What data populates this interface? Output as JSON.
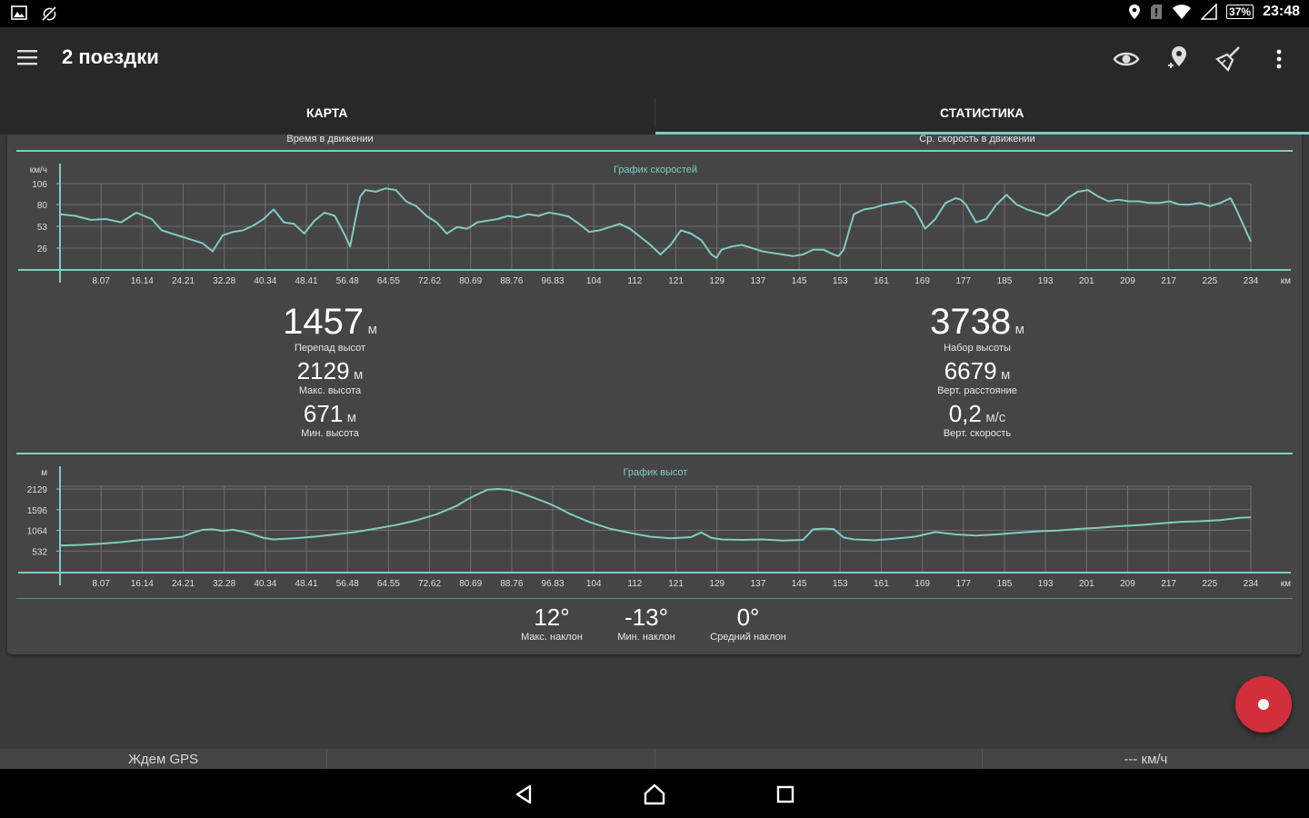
{
  "status_bar": {
    "battery": "37%",
    "time": "23:48"
  },
  "app_bar": {
    "title": "2 поездки"
  },
  "tabs": [
    {
      "label": "КАРТА",
      "active": false
    },
    {
      "label": "СТАТИСТИКА",
      "active": true
    }
  ],
  "partial_labels": {
    "left": "Время в движении",
    "right": "Ср. скорость в движении"
  },
  "stats": {
    "elevation_diff": {
      "value": "1457",
      "unit": "м",
      "label": "Перепад высот"
    },
    "max_altitude": {
      "value": "2129",
      "unit": "м",
      "label": "Макс. высота"
    },
    "min_altitude": {
      "value": "671",
      "unit": "м",
      "label": "Мин. высота"
    },
    "elevation_gain": {
      "value": "3738",
      "unit": "м",
      "label": "Набор высоты"
    },
    "vertical_distance": {
      "value": "6679",
      "unit": "м",
      "label": "Верт. расстояние"
    },
    "vertical_speed": {
      "value": "0,2",
      "unit": "м/с",
      "label": "Верт. скорость"
    }
  },
  "tilt": {
    "max": {
      "value": "12°",
      "label": "Макс. наклон"
    },
    "min": {
      "value": "-13°",
      "label": "Мин. наклон"
    },
    "avg": {
      "value": "0°",
      "label": "Средний наклон"
    }
  },
  "bottom_bar": {
    "gps": "Ждем GPS",
    "speed": "--- км/ч"
  },
  "colors": {
    "accent": "#80cbc4",
    "fab": "#d32f3b"
  },
  "chart_data": [
    {
      "type": "line",
      "title": "График скоростей",
      "ylabel": "км/ч",
      "xlabel": "км",
      "x_ticks": [
        "8.07",
        "16.14",
        "24.21",
        "32.28",
        "40.34",
        "48.41",
        "56.48",
        "64.55",
        "72.62",
        "80.69",
        "88.76",
        "96.83",
        "104",
        "112",
        "121",
        "129",
        "137",
        "145",
        "153",
        "161",
        "169",
        "177",
        "185",
        "193",
        "201",
        "209",
        "217",
        "225",
        "234"
      ],
      "y_ticks": [
        "106",
        "80",
        "53",
        "26"
      ],
      "xlim": [
        0,
        234
      ],
      "ylim": [
        0,
        106
      ],
      "series": [
        {
          "x": [
            0,
            3,
            6,
            9,
            12,
            15,
            18,
            20,
            22,
            24,
            26,
            28,
            30,
            32,
            34,
            36,
            38,
            40,
            42,
            44,
            46,
            48,
            50,
            52,
            54,
            56,
            57,
            58,
            59,
            60,
            62,
            64,
            66,
            68,
            70,
            72,
            74,
            76,
            78,
            80,
            82,
            84,
            86,
            88,
            90,
            92,
            94,
            96,
            98,
            100,
            102,
            104,
            106,
            108,
            110,
            112,
            114,
            116,
            118,
            120,
            122,
            124,
            126,
            128,
            129,
            130,
            132,
            134,
            136,
            138,
            140,
            142,
            144,
            146,
            148,
            150,
            152,
            153,
            154,
            155,
            156,
            158,
            160,
            162,
            164,
            166,
            168,
            170,
            172,
            174,
            176,
            177,
            178,
            180,
            182,
            184,
            186,
            188,
            190,
            192,
            194,
            196,
            198,
            200,
            202,
            204,
            206,
            208,
            210,
            212,
            214,
            216,
            218,
            220,
            222,
            224,
            226,
            228,
            230,
            231,
            232,
            234
          ],
          "values": [
            68,
            66,
            61,
            62,
            58,
            70,
            62,
            48,
            44,
            40,
            36,
            32,
            22,
            42,
            46,
            48,
            54,
            62,
            74,
            58,
            56,
            44,
            60,
            70,
            66,
            42,
            28,
            60,
            90,
            98,
            96,
            100,
            98,
            84,
            78,
            66,
            58,
            44,
            52,
            50,
            58,
            60,
            62,
            66,
            64,
            68,
            66,
            70,
            68,
            65,
            56,
            46,
            48,
            52,
            56,
            50,
            40,
            30,
            18,
            30,
            48,
            44,
            36,
            18,
            14,
            24,
            28,
            30,
            26,
            22,
            20,
            18,
            16,
            18,
            24,
            24,
            18,
            16,
            24,
            46,
            68,
            74,
            76,
            80,
            82,
            84,
            74,
            50,
            62,
            82,
            88,
            86,
            80,
            58,
            62,
            80,
            92,
            80,
            74,
            70,
            66,
            74,
            88,
            96,
            98,
            90,
            84,
            86,
            84,
            84,
            82,
            82,
            84,
            80,
            80,
            82,
            78,
            82,
            88,
            76,
            62,
            34
          ]
        }
      ]
    },
    {
      "type": "line",
      "title": "График высот",
      "ylabel": "м",
      "xlabel": "км",
      "x_ticks": [
        "8.07",
        "16.14",
        "24.21",
        "32.28",
        "40.34",
        "48.41",
        "56.48",
        "64.55",
        "72.62",
        "80.69",
        "88.76",
        "96.83",
        "104",
        "112",
        "121",
        "129",
        "137",
        "145",
        "153",
        "161",
        "169",
        "177",
        "185",
        "193",
        "201",
        "209",
        "217",
        "225",
        "234"
      ],
      "y_ticks": [
        "2129",
        "1596",
        "1064",
        "532"
      ],
      "xlim": [
        0,
        234
      ],
      "ylim": [
        0,
        2200
      ],
      "series": [
        {
          "x": [
            0,
            4,
            8,
            12,
            16,
            20,
            24,
            26,
            28,
            30,
            32,
            34,
            36,
            38,
            40,
            42,
            46,
            50,
            54,
            58,
            62,
            66,
            70,
            74,
            78,
            80,
            82,
            84,
            86,
            88,
            90,
            92,
            94,
            96,
            98,
            100,
            104,
            108,
            112,
            116,
            120,
            124,
            126,
            128,
            130,
            134,
            138,
            142,
            146,
            148,
            150,
            152,
            154,
            156,
            160,
            164,
            168,
            172,
            176,
            180,
            184,
            188,
            192,
            196,
            200,
            204,
            208,
            212,
            216,
            220,
            224,
            228,
            232,
            234
          ],
          "values": [
            671,
            690,
            720,
            760,
            820,
            850,
            900,
            1000,
            1080,
            1090,
            1050,
            1080,
            1030,
            960,
            870,
            830,
            860,
            900,
            960,
            1020,
            1110,
            1200,
            1320,
            1480,
            1700,
            1860,
            1990,
            2110,
            2129,
            2110,
            2050,
            1960,
            1860,
            1760,
            1640,
            1500,
            1280,
            1110,
            1000,
            900,
            860,
            890,
            1010,
            870,
            830,
            820,
            830,
            800,
            820,
            1090,
            1110,
            1100,
            880,
            830,
            810,
            850,
            900,
            1020,
            960,
            930,
            960,
            1000,
            1040,
            1060,
            1100,
            1130,
            1170,
            1200,
            1240,
            1280,
            1300,
            1330,
            1390,
            1400
          ]
        }
      ]
    }
  ]
}
